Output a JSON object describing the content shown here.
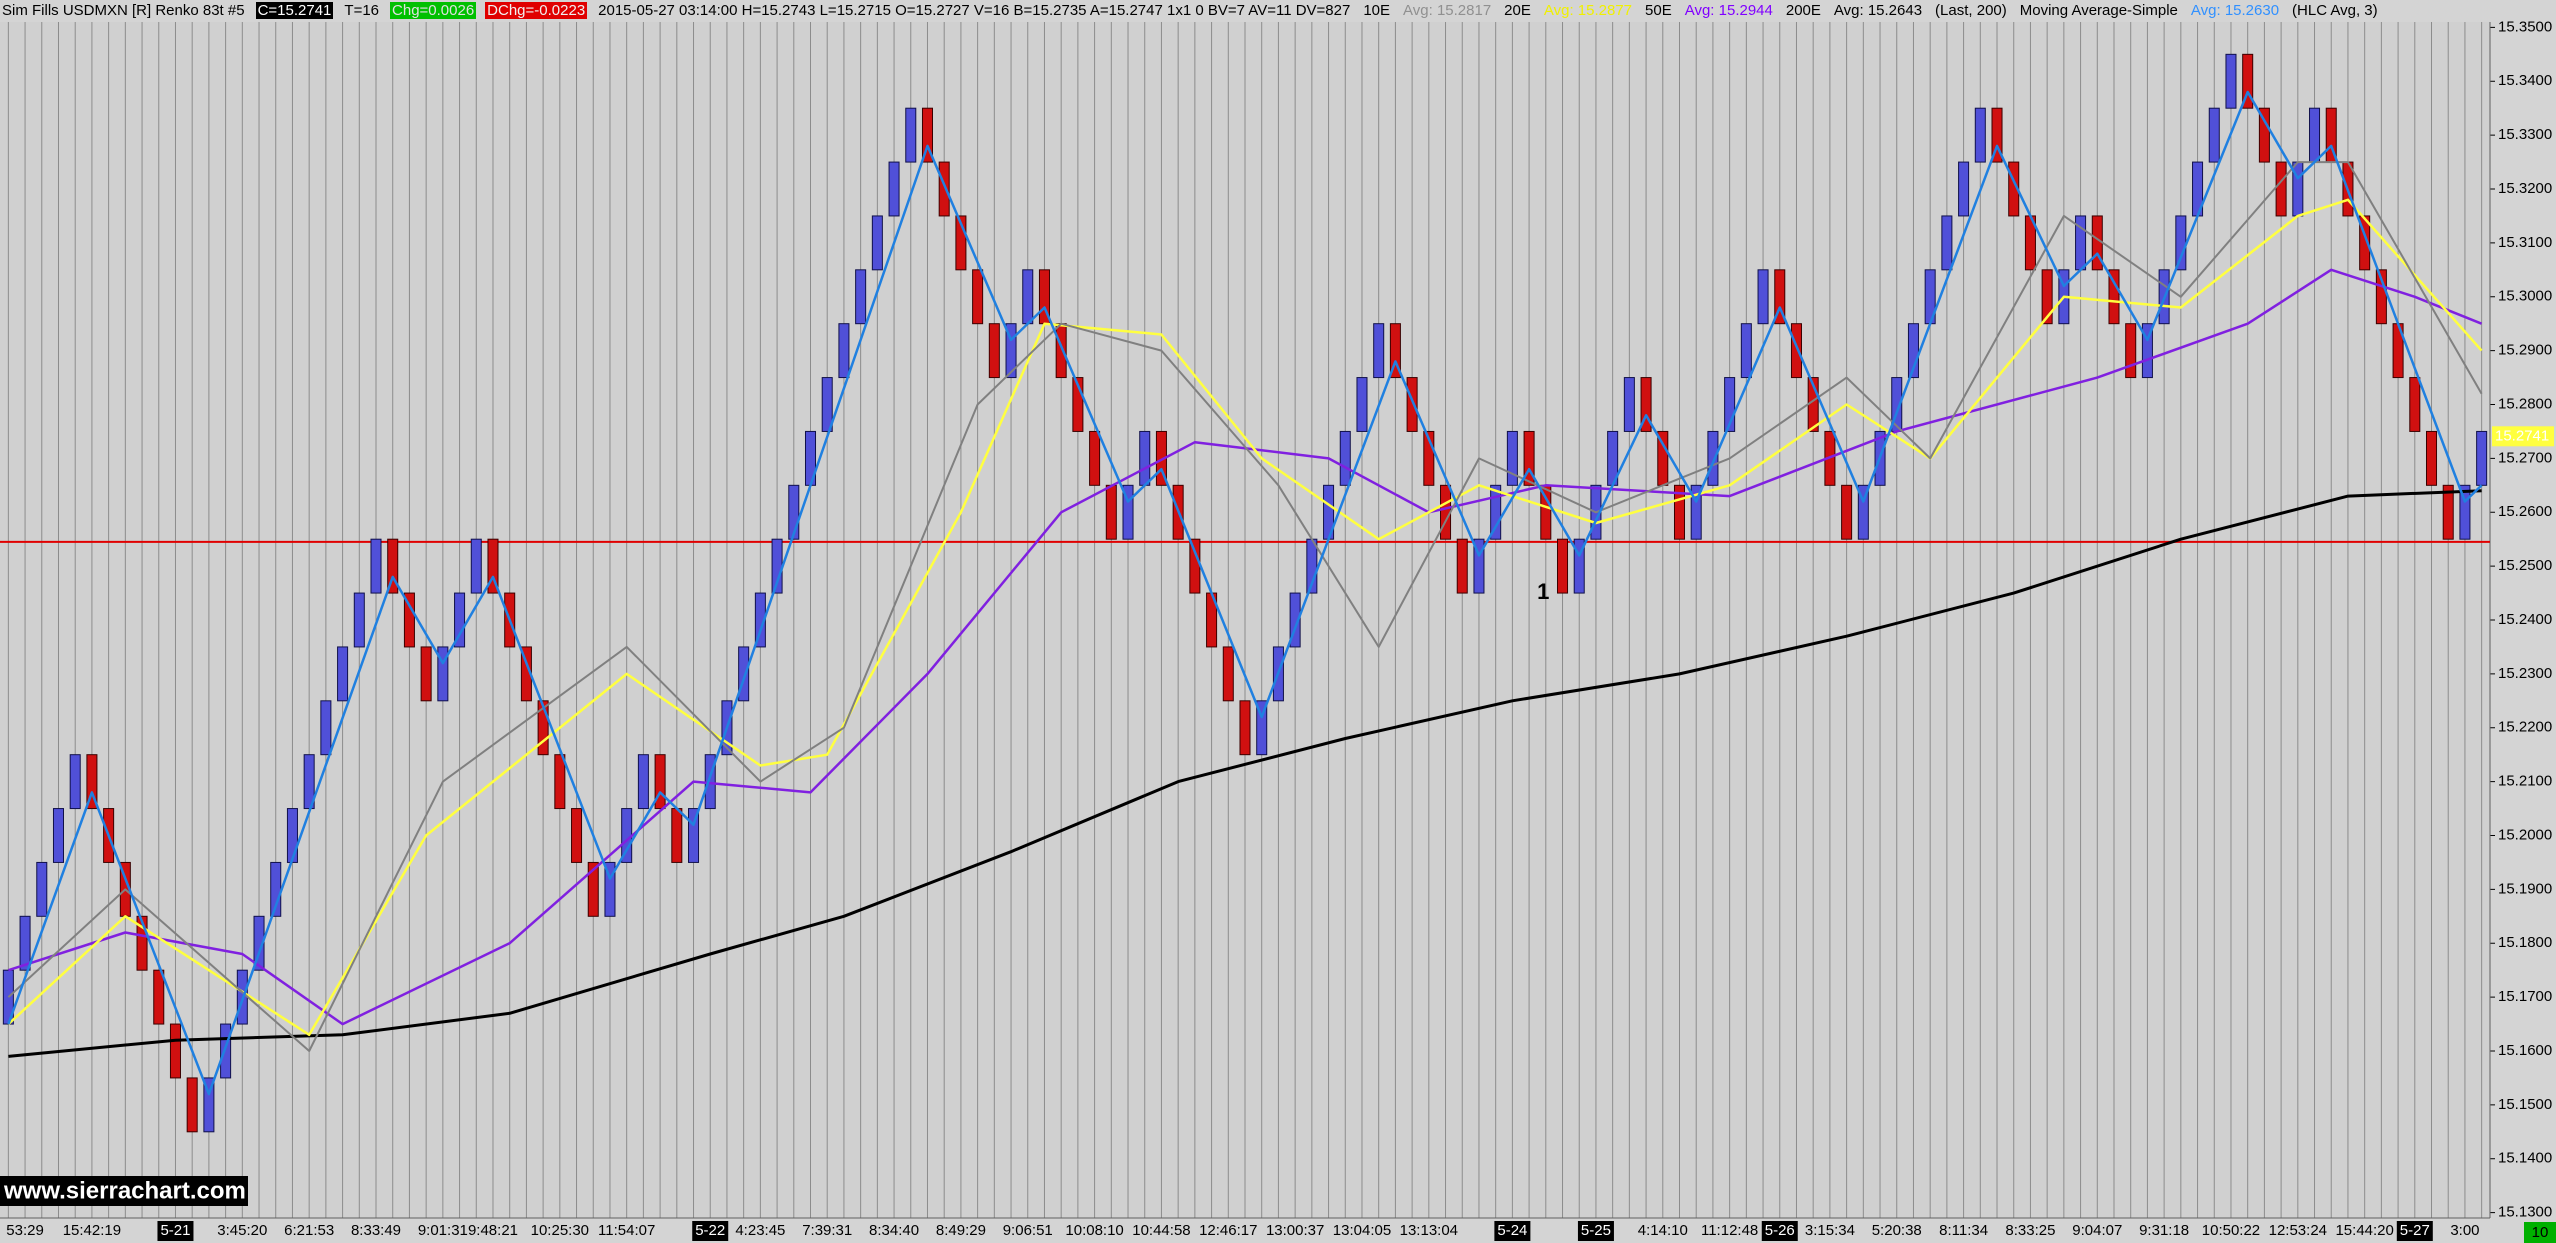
{
  "header": [
    {
      "text": "Sim Fills  USDMXN [R]  Renko 83t  #5"
    },
    {
      "text": "C=15.2741",
      "color": "#ffffff",
      "background": "#000000"
    },
    {
      "text": "T=16"
    },
    {
      "text": "Chg=0.0026",
      "color": "#e0e0e0",
      "background": "#00c000"
    },
    {
      "text": "DChg=-0.0223",
      "color": "#f0f0f0",
      "background": "#e00000"
    },
    {
      "text": "2015-05-27 03:14:00 H=15.2743 L=15.2715 O=15.2727 V=16 B=15.2735 A=15.2747 1x1 0 BV=7 AV=11 DV=827"
    },
    {
      "text": "10E"
    },
    {
      "text": "Avg: 15.2817",
      "color": "#909090"
    },
    {
      "text": "20E"
    },
    {
      "text": "Avg: 15.2877",
      "color": "#f0f000"
    },
    {
      "text": "50E"
    },
    {
      "text": "Avg: 15.2944",
      "color": "#8000ff"
    },
    {
      "text": "200E"
    },
    {
      "text": "Avg: 15.2643"
    },
    {
      "text": "(Last, 200)"
    },
    {
      "text": "Moving Average-Simple"
    },
    {
      "text": "Avg: 15.2630",
      "color": "#3090ff"
    },
    {
      "text": "(HLC Avg, 3)"
    }
  ],
  "watermark": "www.sierrachart.com",
  "corner_label": "10",
  "chart_data": {
    "type": "renko",
    "up_color": "#5050d8",
    "down_color": "#d01010",
    "xgrid": true,
    "categories": [
      null,
      "53:29",
      null,
      null,
      null,
      "15:42:19",
      null,
      null,
      null,
      null,
      "5-21",
      null,
      null,
      null,
      "3:45:20",
      null,
      null,
      null,
      "6:21:53",
      null,
      null,
      null,
      "8:33:49",
      null,
      null,
      null,
      "9:01:31",
      null,
      null,
      "9:48:21",
      null,
      null,
      null,
      "10:25:30",
      null,
      null,
      null,
      "11:54:07",
      null,
      null,
      null,
      null,
      "5-22",
      null,
      null,
      "4:23:45",
      null,
      null,
      null,
      "7:39:31",
      null,
      null,
      null,
      "8:34:40",
      null,
      null,
      null,
      "8:49:29",
      null,
      null,
      null,
      "9:06:51",
      null,
      null,
      null,
      "10:08:10",
      null,
      null,
      null,
      "10:44:58",
      null,
      null,
      null,
      "12:46:17",
      null,
      null,
      null,
      "13:00:37",
      null,
      null,
      null,
      "13:04:05",
      null,
      null,
      null,
      "13:13:04",
      null,
      null,
      null,
      null,
      "5-24",
      null,
      null,
      null,
      null,
      "5-25",
      null,
      null,
      null,
      "4:14:10",
      null,
      null,
      null,
      "11:12:48",
      null,
      null,
      "5-26",
      null,
      null,
      "3:15:34",
      null,
      null,
      null,
      "5:20:38",
      null,
      null,
      null,
      "8:11:34",
      null,
      null,
      null,
      "8:33:25",
      null,
      null,
      null,
      "9:04:07",
      null,
      null,
      null,
      "9:31:18",
      null,
      null,
      null,
      "10:50:22",
      null,
      null,
      null,
      "12:53:24",
      null,
      null,
      null,
      "15:44:20",
      null,
      null,
      "5-27",
      null,
      null,
      "3:00",
      null
    ],
    "open": [
      15.165,
      15.175,
      15.185,
      15.195,
      15.205,
      15.215,
      15.205,
      15.195,
      15.185,
      15.175,
      15.165,
      15.155,
      15.145,
      15.155,
      15.165,
      15.175,
      15.185,
      15.195,
      15.205,
      15.215,
      15.225,
      15.235,
      15.245,
      15.255,
      15.245,
      15.235,
      15.225,
      15.235,
      15.245,
      15.255,
      15.245,
      15.235,
      15.225,
      15.215,
      15.205,
      15.195,
      15.185,
      15.195,
      15.205,
      15.215,
      15.205,
      15.195,
      15.205,
      15.215,
      15.225,
      15.235,
      15.245,
      15.255,
      15.265,
      15.275,
      15.285,
      15.295,
      15.305,
      15.315,
      15.325,
      15.335,
      15.325,
      15.315,
      15.305,
      15.295,
      15.285,
      15.295,
      15.305,
      15.295,
      15.285,
      15.275,
      15.265,
      15.255,
      15.265,
      15.275,
      15.265,
      15.255,
      15.245,
      15.235,
      15.225,
      15.215,
      15.225,
      15.235,
      15.245,
      15.255,
      15.265,
      15.275,
      15.285,
      15.295,
      15.285,
      15.275,
      15.265,
      15.255,
      15.245,
      15.255,
      15.265,
      15.275,
      15.265,
      15.255,
      15.245,
      15.255,
      15.265,
      15.275,
      15.285,
      15.275,
      15.265,
      15.255,
      15.265,
      15.275,
      15.285,
      15.295,
      15.305,
      15.295,
      15.285,
      15.275,
      15.265,
      15.255,
      15.265,
      15.275,
      15.285,
      15.295,
      15.305,
      15.315,
      15.325,
      15.335,
      15.325,
      15.315,
      15.305,
      15.295,
      15.305,
      15.315,
      15.305,
      15.295,
      15.285,
      15.295,
      15.305,
      15.315,
      15.325,
      15.335,
      15.345,
      15.335,
      15.325,
      15.315,
      15.325,
      15.335,
      15.325,
      15.315,
      15.305,
      15.295,
      15.285,
      15.275,
      15.265,
      15.255,
      15.265
    ],
    "close": [
      15.175,
      15.185,
      15.195,
      15.205,
      15.215,
      15.205,
      15.195,
      15.185,
      15.175,
      15.165,
      15.155,
      15.145,
      15.155,
      15.165,
      15.175,
      15.185,
      15.195,
      15.205,
      15.215,
      15.225,
      15.235,
      15.245,
      15.255,
      15.245,
      15.235,
      15.225,
      15.235,
      15.245,
      15.255,
      15.245,
      15.235,
      15.225,
      15.215,
      15.205,
      15.195,
      15.185,
      15.195,
      15.205,
      15.215,
      15.205,
      15.195,
      15.205,
      15.215,
      15.225,
      15.235,
      15.245,
      15.255,
      15.265,
      15.275,
      15.285,
      15.295,
      15.305,
      15.315,
      15.325,
      15.335,
      15.325,
      15.315,
      15.305,
      15.295,
      15.285,
      15.295,
      15.305,
      15.295,
      15.285,
      15.275,
      15.265,
      15.255,
      15.265,
      15.275,
      15.265,
      15.255,
      15.245,
      15.235,
      15.225,
      15.215,
      15.225,
      15.235,
      15.245,
      15.255,
      15.265,
      15.275,
      15.285,
      15.295,
      15.285,
      15.275,
      15.265,
      15.255,
      15.245,
      15.255,
      15.265,
      15.275,
      15.265,
      15.255,
      15.245,
      15.255,
      15.265,
      15.275,
      15.285,
      15.275,
      15.265,
      15.255,
      15.265,
      15.275,
      15.285,
      15.295,
      15.305,
      15.295,
      15.285,
      15.275,
      15.265,
      15.255,
      15.265,
      15.275,
      15.285,
      15.295,
      15.305,
      15.315,
      15.325,
      15.335,
      15.325,
      15.315,
      15.305,
      15.295,
      15.305,
      15.315,
      15.305,
      15.295,
      15.285,
      15.295,
      15.305,
      15.315,
      15.325,
      15.335,
      15.345,
      15.335,
      15.325,
      15.315,
      15.325,
      15.335,
      15.325,
      15.315,
      15.305,
      15.295,
      15.285,
      15.275,
      15.265,
      15.255,
      15.265,
      15.275
    ],
    "series": [
      {
        "color": "#000000",
        "width": 3,
        "x": [
          0,
          10,
          20,
          30,
          42,
          50,
          60,
          70,
          80,
          90,
          100,
          110,
          120,
          130,
          140,
          148
        ],
        "values": [
          15.159,
          15.162,
          15.163,
          15.167,
          15.178,
          15.185,
          15.197,
          15.21,
          15.218,
          15.225,
          15.23,
          15.237,
          15.245,
          15.255,
          15.263,
          15.264
        ]
      },
      {
        "color": "#8020e0",
        "width": 2.5,
        "x": [
          0,
          7,
          14,
          20,
          30,
          41,
          48,
          55,
          63,
          71,
          79,
          85,
          92,
          103,
          113,
          125,
          134,
          139,
          144,
          148
        ],
        "values": [
          15.175,
          15.182,
          15.178,
          15.165,
          15.18,
          15.21,
          15.208,
          15.23,
          15.26,
          15.273,
          15.27,
          15.26,
          15.265,
          15.263,
          15.275,
          15.285,
          15.295,
          15.305,
          15.3,
          15.295
        ]
      },
      {
        "color": "#ffff40",
        "width": 2.5,
        "x": [
          0,
          7,
          18,
          25,
          37,
          45,
          49,
          57,
          62,
          69,
          75,
          82,
          88,
          95,
          103,
          110,
          115,
          123,
          130,
          137,
          140,
          148
        ],
        "values": [
          15.165,
          15.185,
          15.163,
          15.2,
          15.23,
          15.213,
          15.215,
          15.26,
          15.295,
          15.293,
          15.27,
          15.255,
          15.265,
          15.258,
          15.265,
          15.28,
          15.27,
          15.3,
          15.298,
          15.315,
          15.318,
          15.29
        ]
      },
      {
        "color": "#808080",
        "width": 2,
        "x": [
          0,
          7,
          18,
          26,
          37,
          45,
          50,
          58,
          63,
          69,
          76,
          82,
          88,
          95,
          103,
          110,
          115,
          123,
          130,
          137,
          140,
          148
        ],
        "values": [
          15.17,
          15.19,
          15.16,
          15.21,
          15.235,
          15.21,
          15.22,
          15.28,
          15.295,
          15.29,
          15.265,
          15.235,
          15.27,
          15.26,
          15.27,
          15.285,
          15.27,
          15.315,
          15.3,
          15.325,
          15.325,
          15.282
        ]
      },
      {
        "color": "#2080e0",
        "width": 2.5,
        "x": [
          0,
          5,
          12,
          23,
          26,
          29,
          36,
          39,
          41,
          55,
          60,
          62,
          67,
          69,
          75,
          83,
          88,
          91,
          94,
          98,
          101,
          106,
          111,
          119,
          123,
          125,
          128,
          134,
          137,
          139,
          147,
          148
        ],
        "values": [
          15.165,
          15.208,
          15.152,
          15.248,
          15.232,
          15.248,
          15.192,
          15.208,
          15.202,
          15.328,
          15.292,
          15.298,
          15.262,
          15.268,
          15.222,
          15.288,
          15.252,
          15.268,
          15.252,
          15.278,
          15.262,
          15.298,
          15.262,
          15.328,
          15.302,
          15.308,
          15.292,
          15.338,
          15.322,
          15.328,
          15.262,
          15.265
        ]
      }
    ],
    "hline": {
      "value": 15.2545,
      "color": "#e00000"
    },
    "price_marker": {
      "value": 15.2741,
      "label": "15.2741"
    },
    "annotation": {
      "text": "1",
      "x": 91,
      "y": 15.245
    },
    "ylim": [
      15.129,
      15.351
    ],
    "yticks": [
      {
        "value": 15.13,
        "label": "15.1300"
      },
      {
        "value": 15.14,
        "label": "15.1400"
      },
      {
        "value": 15.15,
        "label": "15.1500"
      },
      {
        "value": 15.16,
        "label": "15.1600"
      },
      {
        "value": 15.17,
        "label": "15.1700"
      },
      {
        "value": 15.18,
        "label": "15.1800"
      },
      {
        "value": 15.19,
        "label": "15.1900"
      },
      {
        "value": 15.2,
        "label": "15.2000"
      },
      {
        "value": 15.21,
        "label": "15.2100"
      },
      {
        "value": 15.22,
        "label": "15.2200"
      },
      {
        "value": 15.23,
        "label": "15.2300"
      },
      {
        "value": 15.24,
        "label": "15.2400"
      },
      {
        "value": 15.25,
        "label": "15.2500"
      },
      {
        "value": 15.26,
        "label": "15.2600"
      },
      {
        "value": 15.27,
        "label": "15.2700"
      },
      {
        "value": 15.28,
        "label": "15.2800"
      },
      {
        "value": 15.29,
        "label": "15.2900"
      },
      {
        "value": 15.3,
        "label": "15.3000"
      },
      {
        "value": 15.31,
        "label": "15.3100"
      },
      {
        "value": 15.32,
        "label": "15.3200"
      },
      {
        "value": 15.33,
        "label": "15.3300"
      },
      {
        "value": 15.34,
        "label": "15.3400"
      },
      {
        "value": 15.35,
        "label": "15.3500"
      }
    ]
  }
}
